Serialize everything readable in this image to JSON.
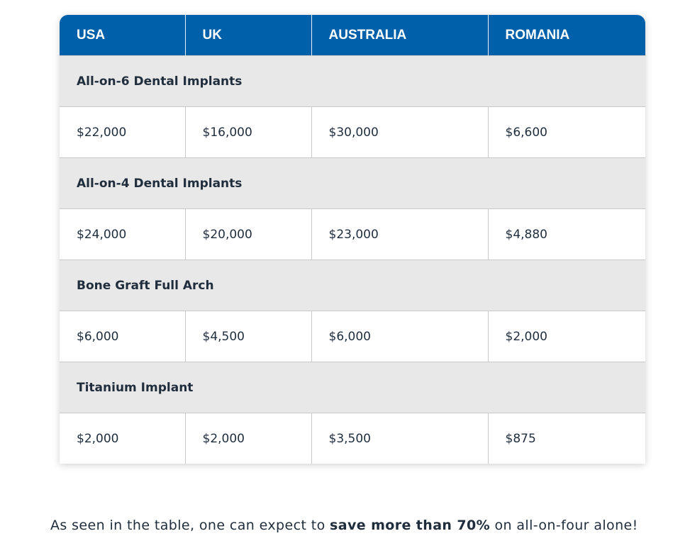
{
  "table": {
    "headers": [
      "USA",
      "UK",
      "AUSTRALIA",
      "ROMANIA"
    ],
    "rows": [
      {
        "section": "All-on-6 Dental Implants",
        "prices": [
          "$22,000",
          "$16,000",
          "$30,000",
          "$6,600"
        ]
      },
      {
        "section": "All-on-4 Dental Implants",
        "prices": [
          "$24,000",
          "$20,000",
          "$23,000",
          "$4,880"
        ]
      },
      {
        "section": "Bone Graft Full Arch",
        "prices": [
          "$6,000",
          "$4,500",
          "$6,000",
          "$2,000"
        ]
      },
      {
        "section": "Titanium Implant",
        "prices": [
          "$2,000",
          "$2,000",
          "$3,500",
          "$875"
        ]
      }
    ]
  },
  "footnote": {
    "before": "As seen in the table, one can expect to ",
    "bold": "save more than 70%",
    "after": " on all-on-four alone!"
  },
  "colors": {
    "header_bg": "#0060aa",
    "section_bg": "#e8e8e8",
    "text": "#1f2d3d"
  }
}
